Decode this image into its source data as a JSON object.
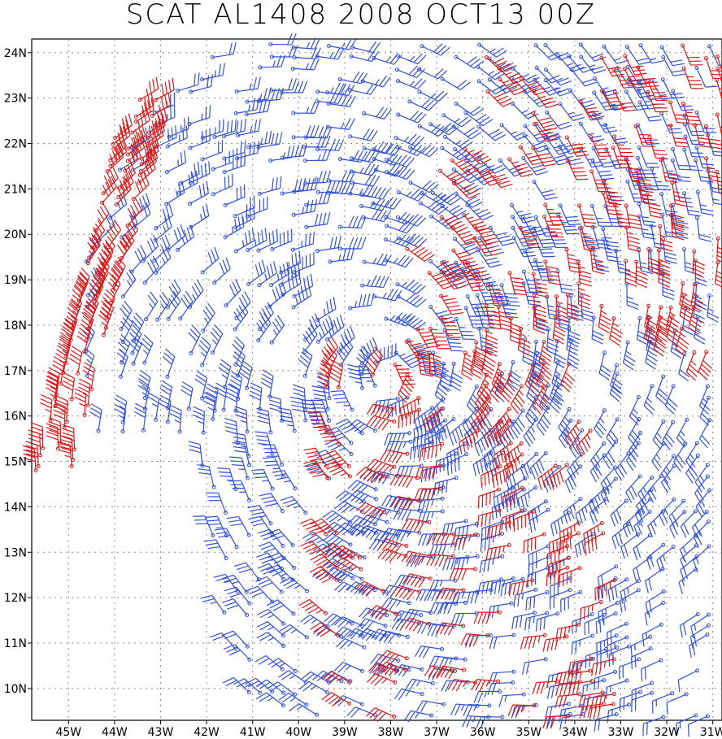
{
  "title": "SCAT AL1408 2008 OCT13 00Z",
  "map": {
    "lon_range": [
      -45.8,
      -30.8
    ],
    "lat_range": [
      9.3,
      24.3
    ],
    "lon_ticks": [
      "45W",
      "44W",
      "43W",
      "42W",
      "41W",
      "40W",
      "39W",
      "38W",
      "37W",
      "36W",
      "35W",
      "34W",
      "33W",
      "32W",
      "31W"
    ],
    "lat_ticks": [
      "24N",
      "23N",
      "22N",
      "21N",
      "20N",
      "19N",
      "18N",
      "17N",
      "16N",
      "15N",
      "14N",
      "13N",
      "12N",
      "11N",
      "10N"
    ],
    "grid": "dotted",
    "storm_center": {
      "lon": -38.1,
      "lat": 16.9
    }
  },
  "series": [
    {
      "color": "#3050d8"
    },
    {
      "color": "#d81818"
    }
  ]
}
